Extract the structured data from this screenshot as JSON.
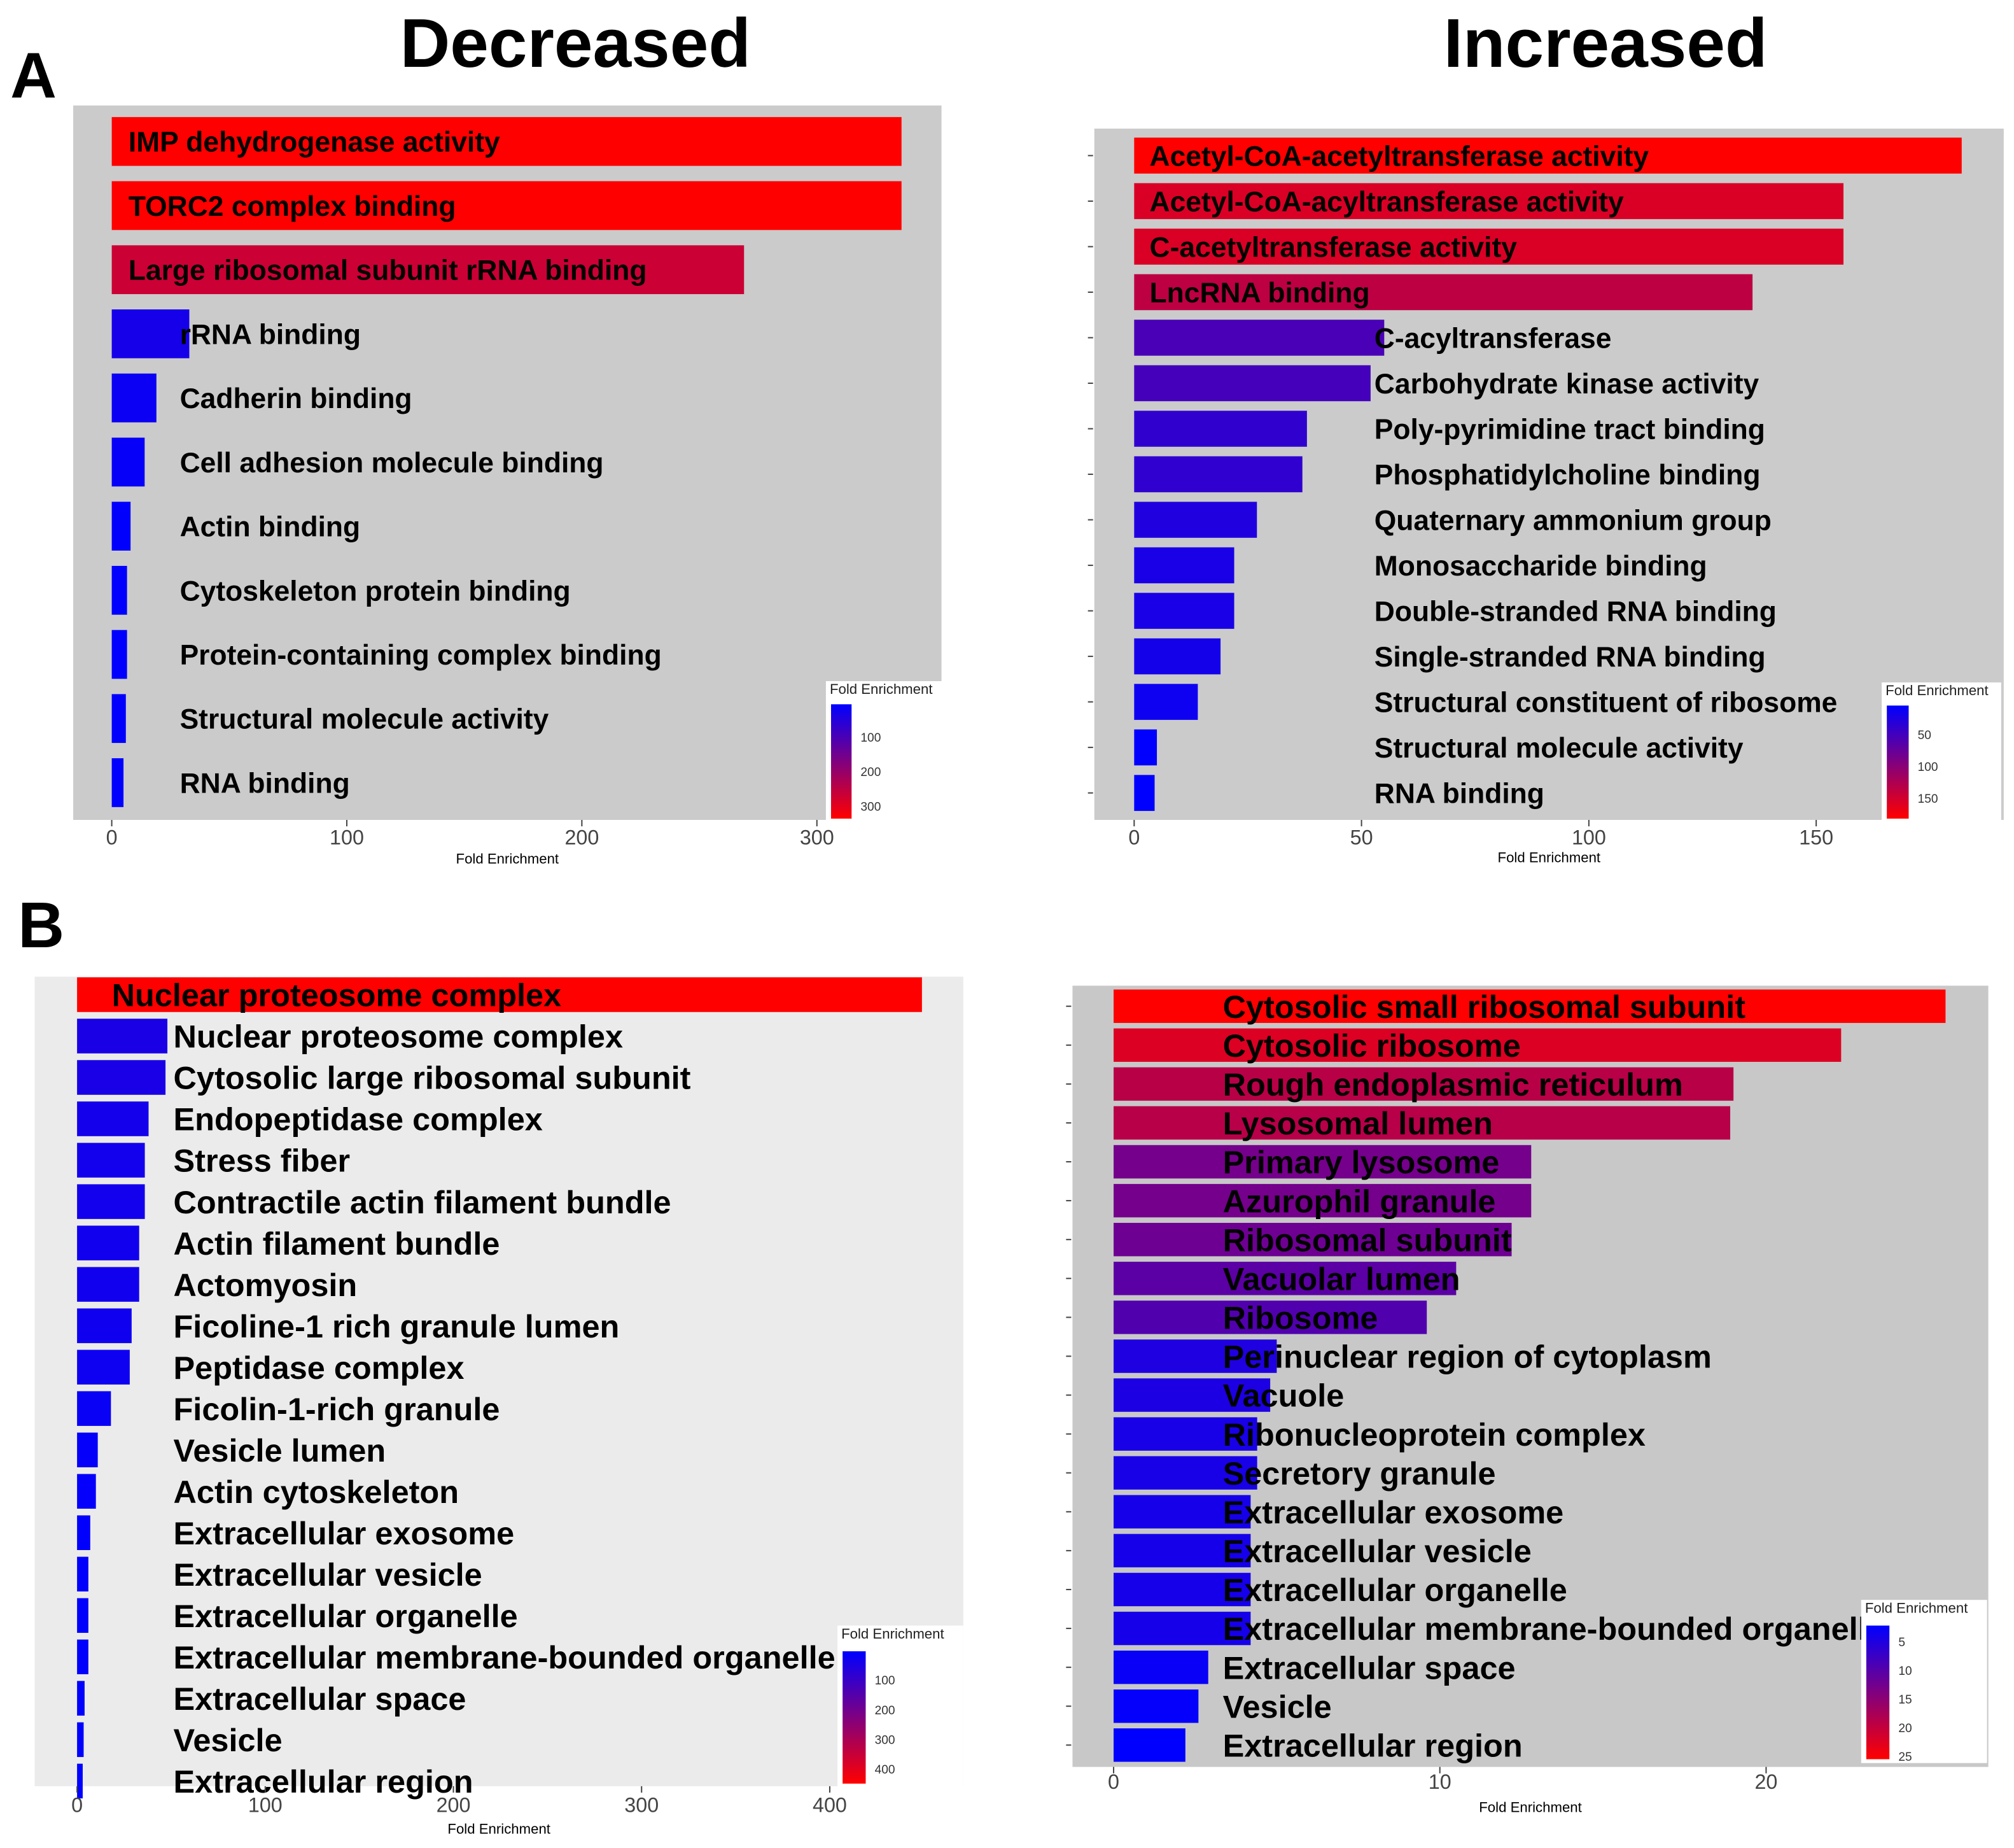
{
  "figure": {
    "section_a_letter": "A",
    "section_b_letter": "B",
    "column_titles": [
      "Decreased",
      "Increased"
    ]
  },
  "chart_data": [
    {
      "type": "bar",
      "orientation": "horizontal",
      "panel": "A",
      "column": "Decreased",
      "xlabel": "Fold Enrichment",
      "xticks": [
        0,
        100,
        200,
        300
      ],
      "xlim": [
        0,
        336
      ],
      "categories": [
        "IMP dehydrogenase activity",
        "TORC2 complex binding",
        "Large ribosomal subunit rRNA binding",
        "rRNA binding",
        "Cadherin binding",
        "Cell adhesion molecule binding",
        "Actin binding",
        "Cytoskeleton protein binding",
        "Protein-containing complex binding",
        "Structural molecule activity",
        "RNA binding"
      ],
      "values": [
        336,
        336,
        269,
        33,
        19,
        14,
        8,
        6.5,
        6.5,
        6,
        5
      ],
      "legend": {
        "title": "Fold Enrichment",
        "ticks": [
          100,
          200,
          300
        ],
        "range": [
          5,
          336
        ],
        "placement": "bottom-right",
        "low_color": "#0000ff",
        "high_color": "#ff0000"
      }
    },
    {
      "type": "bar",
      "orientation": "horizontal",
      "panel": "A",
      "column": "Increased",
      "xlabel": "Fold Enrichment",
      "xticks": [
        0,
        50,
        100,
        150
      ],
      "xlim": [
        0,
        182
      ],
      "categories": [
        "Acetyl-CoA-acetyltransferase activity",
        "Acetyl-CoA-acyltransferase activity",
        "C-acetyltransferase activity",
        "LncRNA binding",
        "C-acyltransferase",
        "Carbohydrate kinase activity",
        "Poly-pyrimidine tract binding",
        "Phosphatidylcholine binding",
        "Quaternary ammonium group",
        "Monosaccharide binding",
        "Double-stranded RNA binding",
        "Single-stranded RNA binding",
        "Structural constituent of ribosome",
        "Structural molecule activity",
        "RNA binding"
      ],
      "values": [
        182,
        156,
        156,
        136,
        55,
        52,
        38,
        37,
        27,
        22,
        22,
        19,
        14,
        5,
        4.5
      ],
      "legend": {
        "title": "Fold Enrichment",
        "ticks": [
          50,
          100,
          150
        ],
        "range": [
          4.5,
          182
        ],
        "placement": "bottom-right",
        "low_color": "#0000ff",
        "high_color": "#ff0000"
      }
    },
    {
      "type": "bar",
      "orientation": "horizontal",
      "panel": "B",
      "column": "Decreased",
      "xlabel": "Fold Enrichment",
      "xticks": [
        0,
        100,
        200,
        300,
        400
      ],
      "xlim": [
        0,
        449
      ],
      "categories": [
        "Nuclear proteosome complex",
        "Nuclear proteosome complex",
        "Cytosolic large ribosomal subunit",
        "Endopeptidase complex",
        "Stress fiber",
        "Contractile actin filament bundle",
        "Actin filament bundle",
        "Actomyosin",
        "Ficoline-1 rich granule lumen",
        "Peptidase complex",
        "Ficolin-1-rich granule",
        "Vesicle lumen",
        "Actin cytoskeleton",
        "Extracellular exosome",
        "Extracellular vesicle",
        "Extracellular organelle",
        "Extracellular membrane-bounded organelle",
        "Extracellular space",
        "Vesicle",
        "Extracellular region"
      ],
      "values": [
        449,
        48,
        47,
        38,
        36,
        36,
        33,
        33,
        29,
        28,
        18,
        11,
        10,
        7,
        6,
        6,
        6,
        4,
        3.5,
        3
      ],
      "legend": {
        "title": "Fold Enrichment",
        "ticks": [
          100,
          200,
          300,
          400
        ],
        "range": [
          3,
          449
        ],
        "placement": "bottom-right",
        "low_color": "#0000ff",
        "high_color": "#ff0000"
      }
    },
    {
      "type": "bar",
      "orientation": "horizontal",
      "panel": "B",
      "column": "Increased",
      "xlabel": "Fold Enrichment",
      "xticks": [
        0,
        10,
        20
      ],
      "xlim": [
        0,
        25.5
      ],
      "categories": [
        "Cytosolic small ribosomal subunit",
        "Cytosolic ribosome",
        "Rough endoplasmic reticulum",
        "Lysosomal lumen",
        "Primary lysosome",
        "Azurophil granule",
        "Ribosomal subunit",
        "Vacuolar lumen",
        "Ribosome",
        "Perinuclear region of cytoplasm",
        "Vacuole",
        "Ribonucleoprotein complex",
        "Secretory granule",
        "Extracellular exosome",
        "Extracellular vesicle",
        "Extracellular organelle",
        "Extracellular membrane-bounded organelle",
        "Extracellular space",
        "Vesicle",
        "Extracellular region"
      ],
      "values": [
        25.5,
        22.3,
        19,
        18.9,
        12.8,
        12.8,
        12.2,
        10.5,
        9.6,
        5.0,
        4.8,
        4.4,
        4.4,
        4.2,
        4.2,
        4.2,
        4.2,
        2.9,
        2.6,
        2.2
      ],
      "legend": {
        "title": "Fold Enrichment",
        "ticks": [
          5,
          10,
          15,
          20,
          25
        ],
        "range": [
          2.2,
          25.5
        ],
        "placement": "bottom-right",
        "low_color": "#0000ff",
        "high_color": "#ff0000"
      }
    }
  ]
}
